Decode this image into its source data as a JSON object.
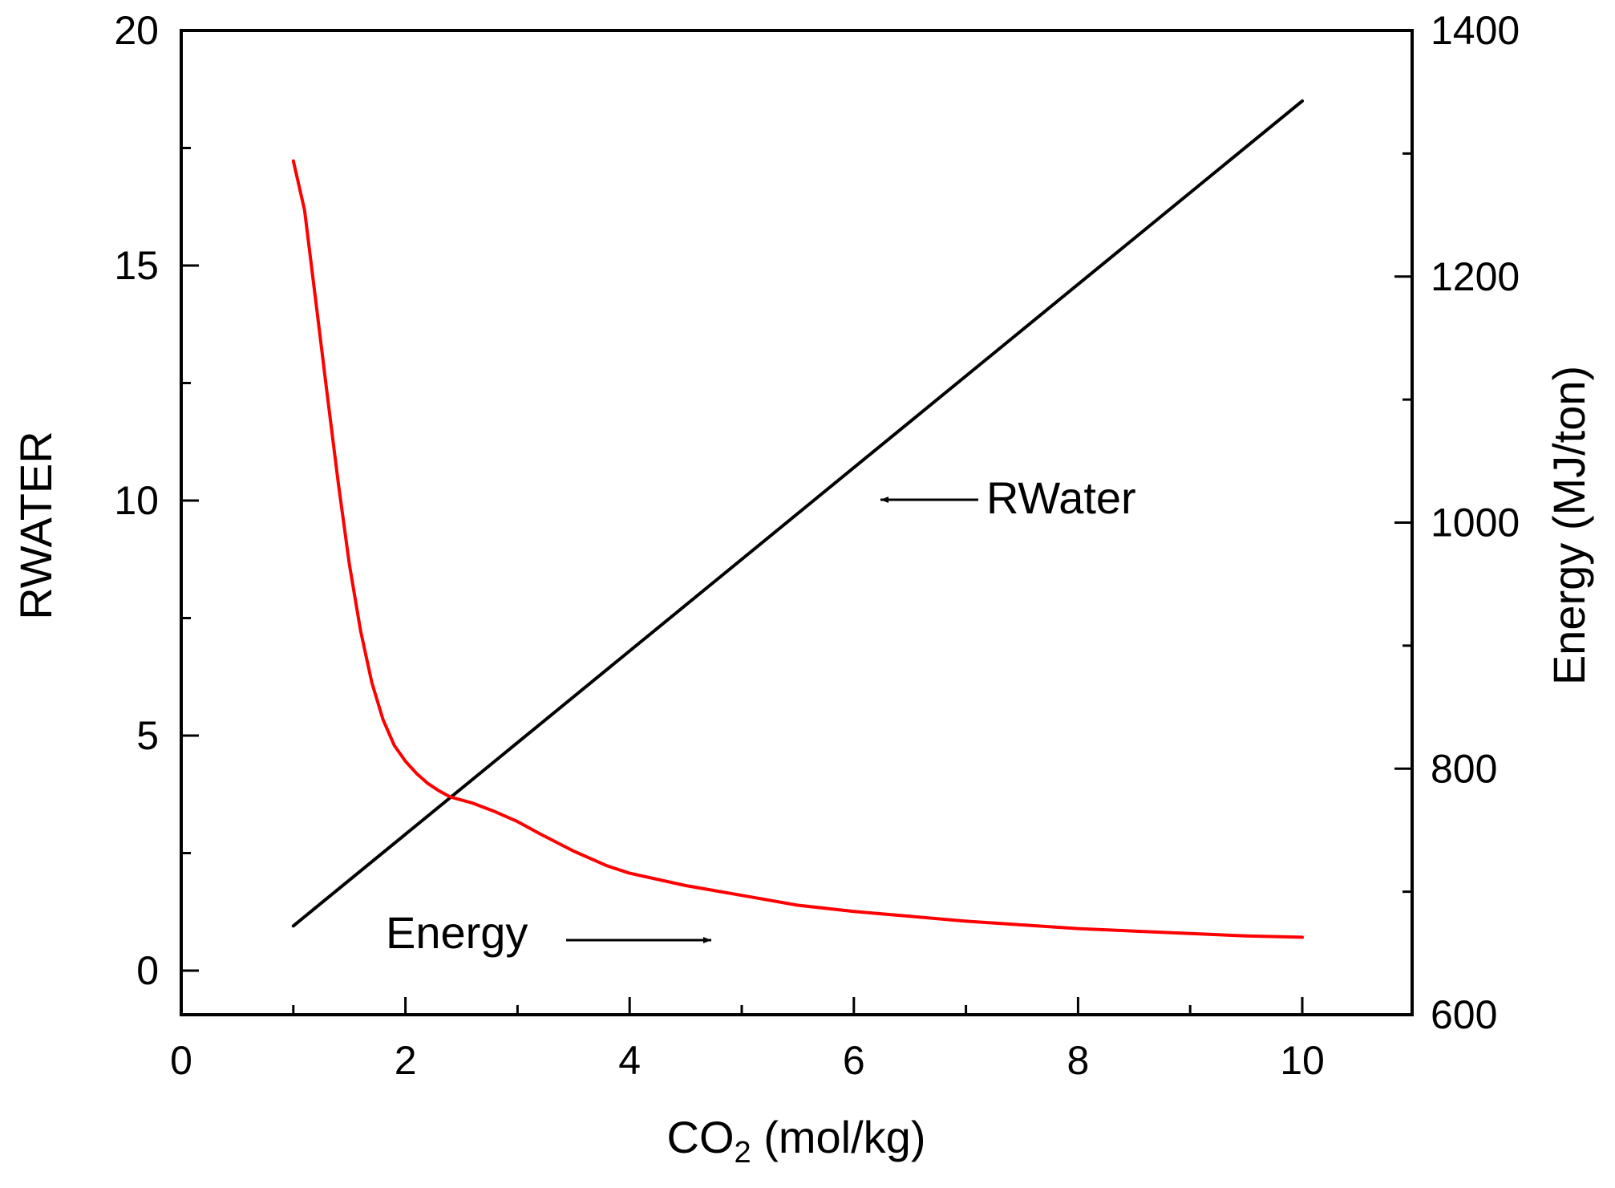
{
  "chart_data": {
    "type": "line",
    "x_axis": {
      "label_main": "CO",
      "label_sub": "2",
      "label_units": " (mol/kg)",
      "range": [
        0,
        11
      ],
      "major_ticks": [
        0,
        2,
        4,
        6,
        8,
        10
      ],
      "tick_labels": [
        "0",
        "2",
        "4",
        "6",
        "8",
        "10"
      ],
      "minor_ticks": [
        1,
        3,
        5,
        7,
        9
      ]
    },
    "y_left": {
      "label": "RWATER",
      "range": [
        -1,
        20
      ],
      "major_ticks": [
        0,
        5,
        10,
        15,
        20
      ],
      "tick_labels": [
        "0",
        "5",
        "10",
        "15",
        "20"
      ],
      "minor_ticks": [
        2.5,
        7.5,
        12.5,
        17.5
      ]
    },
    "y_right": {
      "label": "Energy (MJ/ton)",
      "range": [
        600,
        1400
      ],
      "major_ticks": [
        600,
        800,
        1000,
        1200,
        1400
      ],
      "tick_labels": [
        "600",
        "800",
        "1000",
        "1200",
        "1400"
      ],
      "minor_ticks": [
        700,
        900,
        1100,
        1300
      ]
    },
    "series": [
      {
        "name": "RWater",
        "axis": "left",
        "color": "#000000",
        "x": [
          1,
          10
        ],
        "y": [
          0.95,
          18.5
        ]
      },
      {
        "name": "Energy",
        "axis": "right",
        "color": "#ff0000",
        "x": [
          1.0,
          1.1,
          1.2,
          1.3,
          1.4,
          1.5,
          1.6,
          1.7,
          1.8,
          1.9,
          2.0,
          2.1,
          2.2,
          2.3,
          2.4,
          2.6,
          2.8,
          3.0,
          3.2,
          3.5,
          3.8,
          4.0,
          4.5,
          5.0,
          5.5,
          6.0,
          6.5,
          7.0,
          7.5,
          8.0,
          8.5,
          9.0,
          9.5,
          10.0
        ],
        "y": [
          1294.0,
          1254.0,
          1180.0,
          1106.0,
          1033.0,
          966.0,
          912.0,
          870.0,
          840.0,
          819.0,
          806.0,
          796.0,
          788.0,
          782.0,
          777.0,
          772.0,
          765.0,
          757.0,
          747.0,
          733.0,
          721.0,
          715.0,
          705.0,
          697.0,
          689.0,
          684.0,
          680.0,
          676.0,
          673.0,
          670.0,
          668.0,
          666.0,
          664.0,
          663.0
        ]
      }
    ],
    "annotations": [
      {
        "text": "RWater",
        "points_to": "left"
      },
      {
        "text": "Energy",
        "points_to": "right"
      }
    ]
  }
}
